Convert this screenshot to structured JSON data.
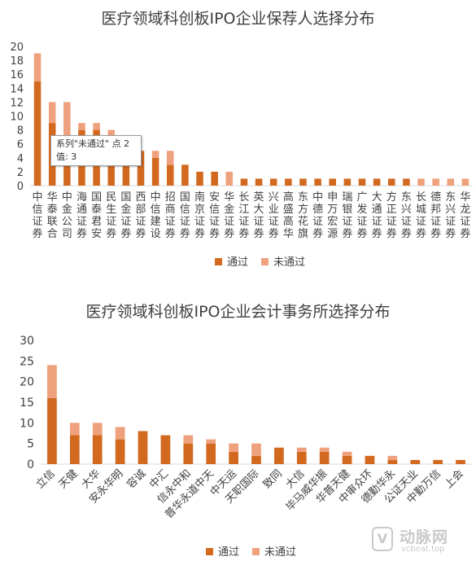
{
  "chart_data": [
    {
      "type": "bar",
      "stacked": true,
      "title": "医疗领域科创板IPO企业保荐人选择分布",
      "categories": [
        "中信证券",
        "华泰联合",
        "中金公司",
        "海通证券",
        "国泰君安",
        "民生证券",
        "国金证券",
        "西部证券",
        "中信建设",
        "招商证券",
        "国信证券",
        "南京证券",
        "安信证券",
        "华金证券",
        "长江证券",
        "英大证券",
        "兴业证券",
        "高盛高华",
        "东方花旗",
        "中德证券",
        "申万宏源",
        "瑞银证券",
        "广发证券",
        "大通证券",
        "方正证券",
        "东兴证券",
        "长城证券",
        "德邦证券",
        "东兴证券",
        "华龙证券"
      ],
      "series": [
        {
          "name": "通过",
          "values": [
            15,
            9,
            7,
            8,
            8,
            7,
            7,
            5,
            4,
            3,
            3,
            2,
            2,
            0,
            1,
            1,
            1,
            1,
            1,
            1,
            1,
            1,
            1,
            1,
            1,
            1,
            0,
            0,
            0,
            0
          ]
        },
        {
          "name": "未通过",
          "values": [
            4,
            3,
            5,
            1,
            1,
            1,
            0,
            0,
            1,
            2,
            0,
            0,
            0,
            2,
            0,
            0,
            0,
            0,
            0,
            0,
            0,
            0,
            0,
            0,
            0,
            0,
            1,
            1,
            1,
            1
          ]
        }
      ],
      "ylim": [
        0,
        20
      ],
      "yticks": [
        0,
        2,
        4,
        6,
        8,
        10,
        12,
        14,
        16,
        18,
        20
      ],
      "tooltip": {
        "line1": "系列\"未通过\" 点 2",
        "line2": "值: 3"
      }
    },
    {
      "type": "bar",
      "stacked": true,
      "title": "医疗领域科创板IPO企业会计事务所选择分布",
      "categories": [
        "立信",
        "天健",
        "大华",
        "安永华明",
        "容诚",
        "中汇",
        "信永中和",
        "普华永道中天",
        "中天运",
        "天职国际",
        "致同",
        "大信",
        "毕马威华振",
        "华普天健",
        "中审众环",
        "德勤华永",
        "公证天业",
        "中勤万信",
        "上会"
      ],
      "series": [
        {
          "name": "通过",
          "values": [
            16,
            7,
            7,
            6,
            8,
            7,
            5,
            5,
            3,
            2,
            4,
            3,
            3,
            2,
            2,
            1,
            1,
            1,
            1
          ]
        },
        {
          "name": "未通过",
          "values": [
            8,
            3,
            3,
            3,
            0,
            0,
            2,
            1,
            2,
            3,
            0,
            1,
            1,
            1,
            0,
            1,
            0,
            0,
            0
          ]
        }
      ],
      "ylim": [
        0,
        30
      ],
      "yticks": [
        0,
        5,
        10,
        15,
        20,
        25,
        30
      ]
    }
  ],
  "colors": {
    "pass": "#d2691f",
    "fail": "#efa07c",
    "axis": "#d9d9d9",
    "text": "#404040"
  },
  "watermark": {
    "name": "动脉网",
    "url": "vcbeat.top",
    "logo": "V"
  }
}
